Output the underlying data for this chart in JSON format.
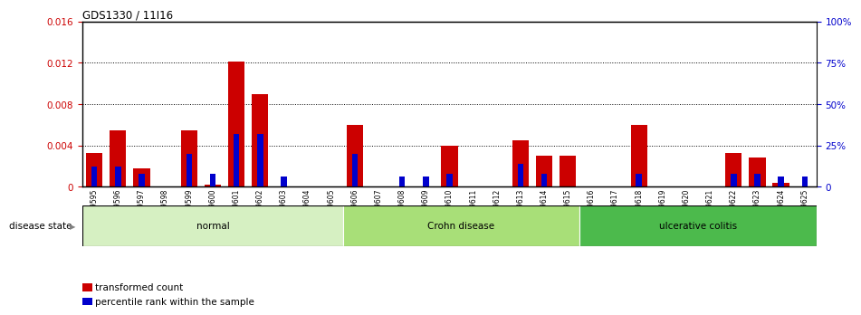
{
  "title": "GDS1330 / 11I16",
  "samples": [
    "GSM29595",
    "GSM29596",
    "GSM29597",
    "GSM29598",
    "GSM29599",
    "GSM29600",
    "GSM29601",
    "GSM29602",
    "GSM29603",
    "GSM29604",
    "GSM29605",
    "GSM29606",
    "GSM29607",
    "GSM29608",
    "GSM29609",
    "GSM29610",
    "GSM29611",
    "GSM29612",
    "GSM29613",
    "GSM29614",
    "GSM29615",
    "GSM29616",
    "GSM29617",
    "GSM29618",
    "GSM29619",
    "GSM29620",
    "GSM29621",
    "GSM29622",
    "GSM29623",
    "GSM29624",
    "GSM29625"
  ],
  "transformed_count": [
    0.0033,
    0.0055,
    0.0018,
    0.0,
    0.0055,
    0.0002,
    0.0121,
    0.009,
    0.0,
    0.0,
    0.0,
    0.006,
    0.0,
    0.0,
    0.0,
    0.004,
    0.0,
    0.0,
    0.0045,
    0.003,
    0.003,
    0.0,
    0.0,
    0.006,
    0.0,
    0.0,
    0.0,
    0.0033,
    0.0028,
    0.0004,
    0.0
  ],
  "percentile_rank_pct": [
    12,
    12,
    8,
    0,
    20,
    8,
    32,
    32,
    6,
    0,
    0,
    20,
    0,
    6,
    6,
    8,
    0,
    0,
    14,
    8,
    0,
    0,
    0,
    8,
    0,
    0,
    0,
    8,
    8,
    6,
    6
  ],
  "groups": [
    {
      "label": "normal",
      "start": 0,
      "end": 10,
      "color": "#d6f0c2"
    },
    {
      "label": "Crohn disease",
      "start": 11,
      "end": 20,
      "color": "#a8df78"
    },
    {
      "label": "ulcerative colitis",
      "start": 21,
      "end": 30,
      "color": "#4cba4c"
    }
  ],
  "ylim_left": [
    0,
    0.016
  ],
  "ylim_right": [
    0,
    100
  ],
  "yticks_left": [
    0.0,
    0.004,
    0.008,
    0.012,
    0.016
  ],
  "yticks_right": [
    0,
    25,
    50,
    75,
    100
  ],
  "red_color": "#cc0000",
  "blue_color": "#0000cc",
  "disease_state_label": "disease state",
  "legend_red": "transformed count",
  "legend_blue": "percentile rank within the sample"
}
